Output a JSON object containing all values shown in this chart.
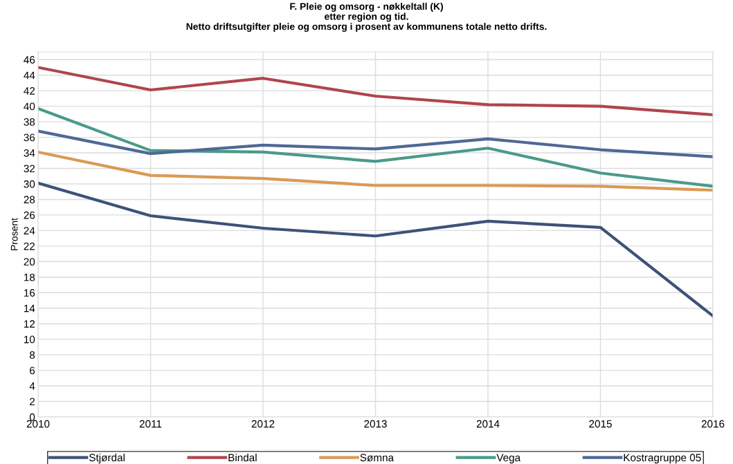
{
  "chart_data": {
    "type": "line",
    "title": "F. Pleie og omsorg - nøkkeltall (K)\netter region og tid.\nNetto driftsutgifter pleie og omsorg i prosent av kommunens totale netto drifts.",
    "ylabel": "Prosent",
    "x": [
      2010,
      2011,
      2012,
      2013,
      2014,
      2015,
      2016
    ],
    "series": [
      {
        "name": "Stjørdal",
        "color": "#3e5279",
        "values": [
          30.1,
          25.9,
          24.3,
          23.3,
          25.2,
          24.4,
          13.0
        ]
      },
      {
        "name": "Bindal",
        "color": "#b0454c",
        "values": [
          45.0,
          42.1,
          43.6,
          41.3,
          40.2,
          40.0,
          38.9
        ]
      },
      {
        "name": "Sømna",
        "color": "#d99a55",
        "values": [
          34.1,
          31.1,
          30.7,
          29.8,
          29.8,
          29.7,
          29.2
        ]
      },
      {
        "name": "Vega",
        "color": "#4a9a8a",
        "values": [
          39.7,
          34.3,
          34.1,
          32.9,
          34.6,
          31.4,
          29.7
        ]
      },
      {
        "name": "Kostragruppe 05",
        "color": "#4f6896",
        "values": [
          36.8,
          33.9,
          35.0,
          34.5,
          35.8,
          34.4,
          33.5
        ]
      }
    ],
    "xlim": [
      2010,
      2016
    ],
    "xticks": [
      2010,
      2011,
      2012,
      2013,
      2014,
      2015,
      2016
    ],
    "ylim": [
      0,
      47
    ],
    "yticks": [
      0,
      2,
      4,
      6,
      8,
      10,
      12,
      14,
      16,
      18,
      20,
      22,
      24,
      26,
      28,
      30,
      32,
      34,
      36,
      38,
      40,
      42,
      44,
      46
    ],
    "grid": true,
    "legend": "bottom",
    "marker": "none",
    "line_style": "solid"
  }
}
